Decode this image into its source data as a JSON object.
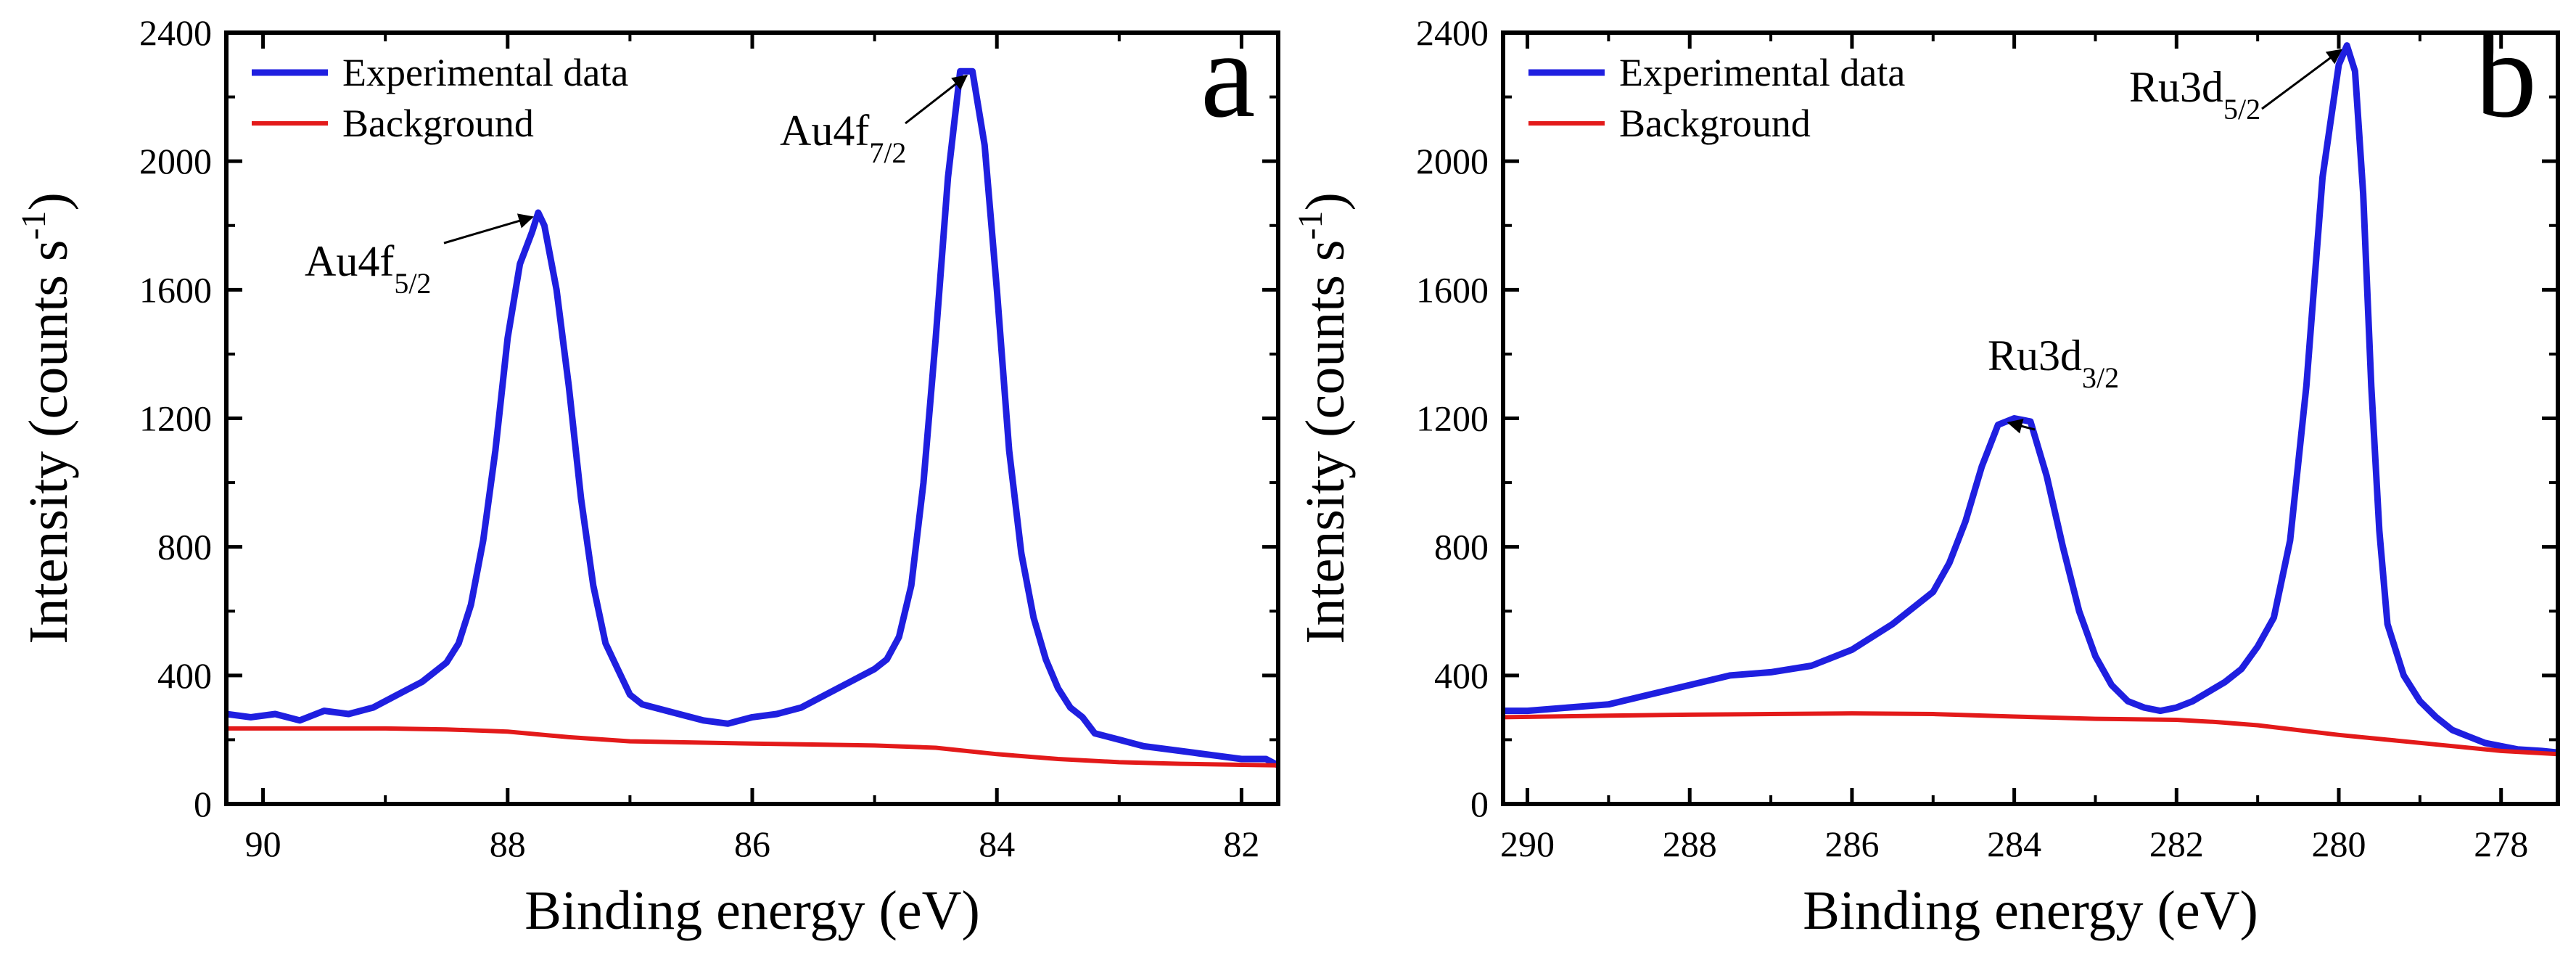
{
  "chart_data": [
    {
      "type": "line",
      "panel_label": "a",
      "xlabel": "Binding energy (eV)",
      "ylabel": "Intensity (counts s",
      "ylabel_sup": "-1",
      "ylabel_end": ")",
      "xlim": [
        90.3,
        81.7
      ],
      "ylim": [
        0,
        2400
      ],
      "x_reversed": true,
      "xticks": [
        90,
        88,
        86,
        84,
        82
      ],
      "yticks": [
        0,
        400,
        800,
        1200,
        1600,
        2000,
        2400
      ],
      "legend_position": "top-left",
      "series": [
        {
          "name": "Experimental data",
          "color": "#1f1fe0",
          "x": [
            90.3,
            90.1,
            89.9,
            89.7,
            89.5,
            89.3,
            89.1,
            88.9,
            88.7,
            88.5,
            88.4,
            88.3,
            88.2,
            88.1,
            88.0,
            87.9,
            87.8,
            87.75,
            87.7,
            87.6,
            87.5,
            87.4,
            87.3,
            87.2,
            87.1,
            87.0,
            86.9,
            86.8,
            86.6,
            86.4,
            86.2,
            86.0,
            85.8,
            85.6,
            85.4,
            85.2,
            85.0,
            84.9,
            84.8,
            84.7,
            84.6,
            84.5,
            84.4,
            84.3,
            84.2,
            84.1,
            84.0,
            83.9,
            83.8,
            83.7,
            83.6,
            83.5,
            83.4,
            83.3,
            83.2,
            83.0,
            82.8,
            82.6,
            82.4,
            82.2,
            82.0,
            81.8,
            81.7
          ],
          "values": [
            280,
            270,
            280,
            260,
            290,
            280,
            300,
            340,
            380,
            440,
            500,
            620,
            820,
            1100,
            1450,
            1680,
            1780,
            1840,
            1800,
            1600,
            1300,
            950,
            680,
            500,
            420,
            340,
            310,
            300,
            280,
            260,
            250,
            270,
            280,
            300,
            340,
            380,
            420,
            450,
            520,
            680,
            1000,
            1450,
            1950,
            2280,
            2280,
            2050,
            1600,
            1100,
            780,
            580,
            450,
            360,
            300,
            270,
            220,
            200,
            180,
            170,
            160,
            150,
            140,
            140,
            120
          ]
        },
        {
          "name": "Background",
          "color": "#e31a1a",
          "x": [
            90.3,
            89.0,
            88.5,
            88.0,
            87.5,
            87.0,
            86.0,
            85.0,
            84.5,
            84.0,
            83.5,
            83.0,
            82.5,
            82.0,
            81.7
          ],
          "values": [
            235,
            235,
            232,
            225,
            208,
            195,
            188,
            182,
            175,
            155,
            140,
            130,
            125,
            122,
            120
          ]
        }
      ],
      "annotations": [
        {
          "text": "Au4f",
          "sub": "5/2",
          "target_x": 87.75,
          "target_y": 1840
        },
        {
          "text": "Au4f",
          "sub": "7/2",
          "target_x": 84.2,
          "target_y": 2280
        }
      ]
    },
    {
      "type": "line",
      "panel_label": "b",
      "xlabel": "Binding energy (eV)",
      "ylabel": "Intensity (counts s",
      "ylabel_sup": "-1",
      "ylabel_end": ")",
      "xlim": [
        290.3,
        277.3
      ],
      "ylim": [
        0,
        2400
      ],
      "x_reversed": true,
      "xticks": [
        290,
        288,
        286,
        284,
        282,
        280,
        278
      ],
      "yticks": [
        0,
        400,
        800,
        1200,
        1600,
        2000,
        2400
      ],
      "legend_position": "top-left",
      "series": [
        {
          "name": "Experimental data",
          "color": "#1f1fe0",
          "x": [
            290.3,
            290.0,
            289.5,
            289.0,
            288.5,
            288.0,
            287.5,
            287.0,
            286.5,
            286.0,
            285.5,
            285.0,
            284.8,
            284.6,
            284.4,
            284.2,
            284.0,
            283.8,
            283.6,
            283.4,
            283.2,
            283.0,
            282.8,
            282.6,
            282.4,
            282.2,
            282.0,
            281.8,
            281.6,
            281.4,
            281.2,
            281.0,
            280.8,
            280.6,
            280.4,
            280.2,
            280.0,
            279.9,
            279.8,
            279.7,
            279.6,
            279.5,
            279.4,
            279.2,
            279.0,
            278.8,
            278.6,
            278.4,
            278.2,
            278.0,
            277.8,
            277.5,
            277.3
          ],
          "values": [
            290,
            290,
            300,
            310,
            340,
            370,
            400,
            410,
            430,
            480,
            560,
            660,
            750,
            880,
            1050,
            1180,
            1200,
            1190,
            1020,
            800,
            600,
            460,
            370,
            320,
            300,
            290,
            300,
            320,
            350,
            380,
            420,
            490,
            580,
            820,
            1300,
            1950,
            2300,
            2360,
            2280,
            1900,
            1300,
            850,
            560,
            400,
            320,
            270,
            230,
            210,
            190,
            180,
            170,
            165,
            160
          ]
        },
        {
          "name": "Background",
          "color": "#e31a1a",
          "x": [
            290.3,
            289.0,
            288.0,
            287.0,
            286.0,
            285.0,
            284.0,
            283.0,
            282.0,
            281.5,
            281.0,
            280.0,
            279.0,
            278.0,
            277.3
          ],
          "values": [
            270,
            275,
            278,
            280,
            282,
            280,
            272,
            265,
            262,
            255,
            245,
            215,
            190,
            165,
            155
          ]
        }
      ],
      "annotations": [
        {
          "text": "Ru3d",
          "sub": "3/2",
          "target_x": 284.0,
          "target_y": 1200
        },
        {
          "text": "Ru3d",
          "sub": "5/2",
          "target_x": 279.9,
          "target_y": 2360
        }
      ]
    }
  ]
}
